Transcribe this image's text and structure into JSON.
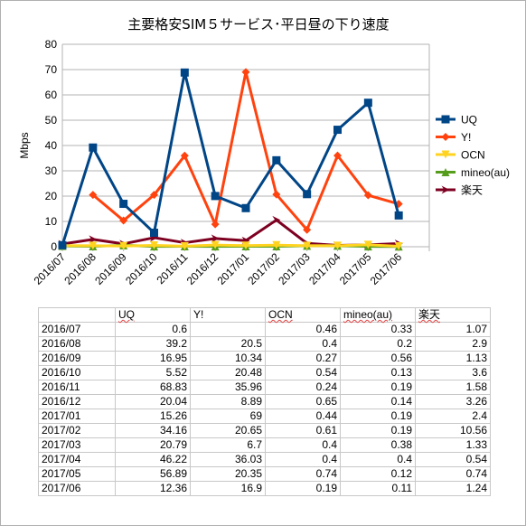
{
  "chart_data": {
    "type": "line",
    "title": "主要格安SIM５サービス･平日昼の下り速度",
    "ylabel": "Mbps",
    "xlabel": "",
    "ylim": [
      0,
      80
    ],
    "yticks": [
      0,
      10,
      20,
      30,
      40,
      50,
      60,
      70,
      80
    ],
    "grid": "horizontal",
    "legend_position": "right",
    "categories": [
      "2016/07",
      "2016/08",
      "2016/09",
      "2016/10",
      "2016/11",
      "2016/12",
      "2017/01",
      "2017/02",
      "2017/03",
      "2017/04",
      "2017/05",
      "2017/06"
    ],
    "series": [
      {
        "name": "UQ",
        "color": "#004586",
        "marker": "square",
        "values": [
          0.6,
          39.2,
          16.95,
          5.52,
          68.83,
          20.04,
          15.26,
          34.16,
          20.79,
          46.22,
          56.89,
          12.36
        ]
      },
      {
        "name": "Y!",
        "color": "#ff420e",
        "marker": "diamond",
        "values": [
          null,
          20.5,
          10.34,
          20.48,
          35.96,
          8.89,
          69,
          20.65,
          6.7,
          36.03,
          20.35,
          16.9
        ]
      },
      {
        "name": "OCN",
        "color": "#ffd320",
        "marker": "triangle-down",
        "values": [
          0.46,
          0.4,
          0.27,
          0.54,
          0.24,
          0.65,
          0.44,
          0.61,
          0.4,
          0.4,
          0.74,
          0.19
        ]
      },
      {
        "name": "mineo(au)",
        "color": "#579d1c",
        "marker": "triangle-up",
        "values": [
          0.33,
          0.2,
          0.56,
          0.13,
          0.19,
          0.14,
          0.19,
          0.19,
          0.38,
          0.4,
          0.12,
          0.11
        ]
      },
      {
        "name": "楽天",
        "color": "#7e0021",
        "marker": "arrow-right",
        "values": [
          1.07,
          2.9,
          1.13,
          3.6,
          1.58,
          3.26,
          2.4,
          10.56,
          1.33,
          0.54,
          0.74,
          1.24
        ]
      }
    ]
  },
  "table": {
    "headers": [
      "",
      "UQ",
      "Y!",
      "OCN",
      "mineo(au)",
      "楽天"
    ],
    "rows": [
      [
        "2016/07",
        "0.6",
        "",
        "0.46",
        "0.33",
        "1.07"
      ],
      [
        "2016/08",
        "39.2",
        "20.5",
        "0.4",
        "0.2",
        "2.9"
      ],
      [
        "2016/09",
        "16.95",
        "10.34",
        "0.27",
        "0.56",
        "1.13"
      ],
      [
        "2016/10",
        "5.52",
        "20.48",
        "0.54",
        "0.13",
        "3.6"
      ],
      [
        "2016/11",
        "68.83",
        "35.96",
        "0.24",
        "0.19",
        "1.58"
      ],
      [
        "2016/12",
        "20.04",
        "8.89",
        "0.65",
        "0.14",
        "3.26"
      ],
      [
        "2017/01",
        "15.26",
        "69",
        "0.44",
        "0.19",
        "2.4"
      ],
      [
        "2017/02",
        "34.16",
        "20.65",
        "0.61",
        "0.19",
        "10.56"
      ],
      [
        "2017/03",
        "20.79",
        "6.7",
        "0.4",
        "0.38",
        "1.33"
      ],
      [
        "2017/04",
        "46.22",
        "36.03",
        "0.4",
        "0.4",
        "0.54"
      ],
      [
        "2017/05",
        "56.89",
        "20.35",
        "0.74",
        "0.12",
        "0.74"
      ],
      [
        "2017/06",
        "12.36",
        "16.9",
        "0.19",
        "0.11",
        "1.24"
      ]
    ]
  }
}
